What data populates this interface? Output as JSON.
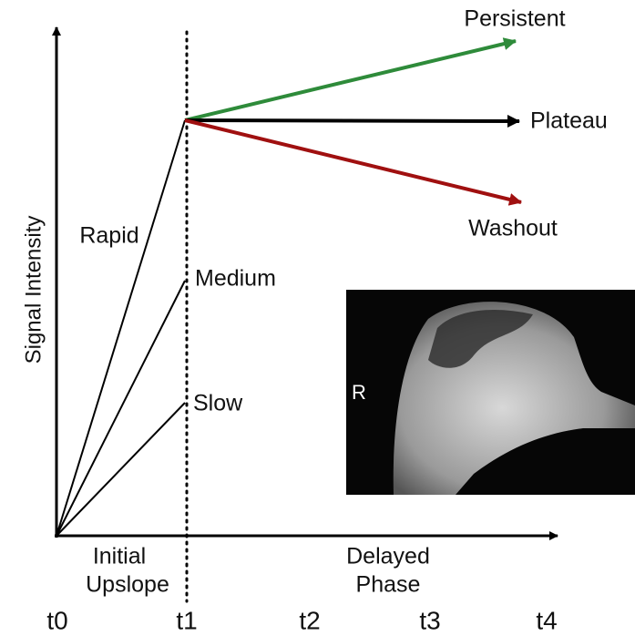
{
  "axes": {
    "y_label": "Signal Intensity",
    "time_points": [
      "t0",
      "t1",
      "t2",
      "t3",
      "t4"
    ]
  },
  "phases": {
    "initial": [
      "Initial",
      "Upslope"
    ],
    "delayed": [
      "Delayed",
      "Phase"
    ]
  },
  "upslopes": [
    "Rapid",
    "Medium",
    "Slow"
  ],
  "curves": [
    "Persistent",
    "Plateau",
    "Washout"
  ],
  "image": {
    "label": "R"
  }
}
